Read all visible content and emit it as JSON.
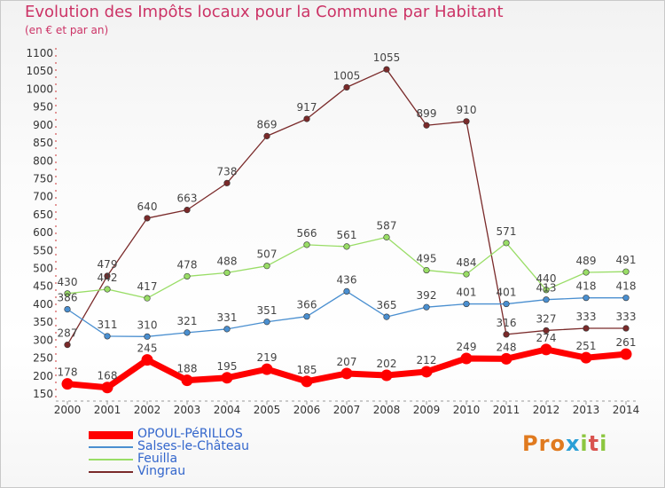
{
  "title": "Evolution des Impôts locaux pour la Commune par Habitant",
  "subtitle": "(en € et par an)",
  "logo": {
    "letters": [
      "P",
      "r",
      "o",
      "x",
      "i",
      "t",
      "i"
    ],
    "colors": [
      "#e07a1f",
      "#e07a1f",
      "#e07a1f",
      "#2a9fd6",
      "#8cc63f",
      "#d9534f",
      "#8cc63f"
    ]
  },
  "chart_data": {
    "type": "line",
    "title": "Evolution des Impôts locaux pour la Commune par Habitant",
    "subtitle": "(en € et par an)",
    "categories": [
      "2000",
      "2001",
      "2002",
      "2003",
      "2004",
      "2005",
      "2006",
      "2007",
      "2008",
      "2009",
      "2010",
      "2011",
      "2012",
      "2013",
      "2014"
    ],
    "ylim": [
      150,
      1100
    ],
    "yticks": [
      150,
      200,
      250,
      300,
      350,
      400,
      450,
      500,
      550,
      600,
      650,
      700,
      750,
      800,
      850,
      900,
      950,
      1000,
      1050,
      1100
    ],
    "grid": false,
    "legend": "bottom-left",
    "series": [
      {
        "name": "Vingrau",
        "color": "#7a2a2a",
        "values": [
          287,
          479,
          640,
          663,
          738,
          869,
          917,
          1005,
          1055,
          899,
          910,
          316,
          327,
          333,
          333
        ],
        "labels": [
          "287",
          "479",
          "640",
          "663",
          "738",
          "869",
          "917",
          "1005",
          "1055",
          "899",
          "910",
          "316",
          "327",
          "333",
          "333"
        ]
      },
      {
        "name": "Feuilla",
        "color": "#99dd66",
        "values": [
          430,
          442,
          417,
          478,
          488,
          507,
          566,
          561,
          587,
          495,
          484,
          571,
          440,
          489,
          491
        ],
        "labels": [
          "430",
          "442",
          "417",
          "478",
          "488",
          "507",
          "566",
          "561",
          "587",
          "495",
          "484",
          "571",
          "440",
          "489",
          "491"
        ]
      },
      {
        "name": "Salses-le-Château",
        "color": "#4a8fd0",
        "values": [
          386,
          311,
          310,
          321,
          331,
          351,
          366,
          436,
          365,
          392,
          401,
          401,
          413,
          418,
          418
        ],
        "labels": [
          "386",
          "311",
          "310",
          "321",
          "331",
          "351",
          "366",
          "436",
          "365",
          "392",
          "401",
          "401",
          "413",
          "418",
          "418"
        ]
      },
      {
        "name": "OPOUL-PéRILLOS",
        "color": "#ff0000",
        "values": [
          178,
          168,
          245,
          188,
          195,
          219,
          185,
          207,
          202,
          212,
          249,
          248,
          274,
          251,
          261
        ],
        "labels": [
          "178",
          "168",
          "245",
          "188",
          "195",
          "219",
          "185",
          "207",
          "202",
          "212",
          "249",
          "248",
          "274",
          "251",
          "261"
        ]
      }
    ],
    "legend_order": [
      "OPOUL-PéRILLOS",
      "Salses-le-Château",
      "Feuilla",
      "Vingrau"
    ]
  }
}
